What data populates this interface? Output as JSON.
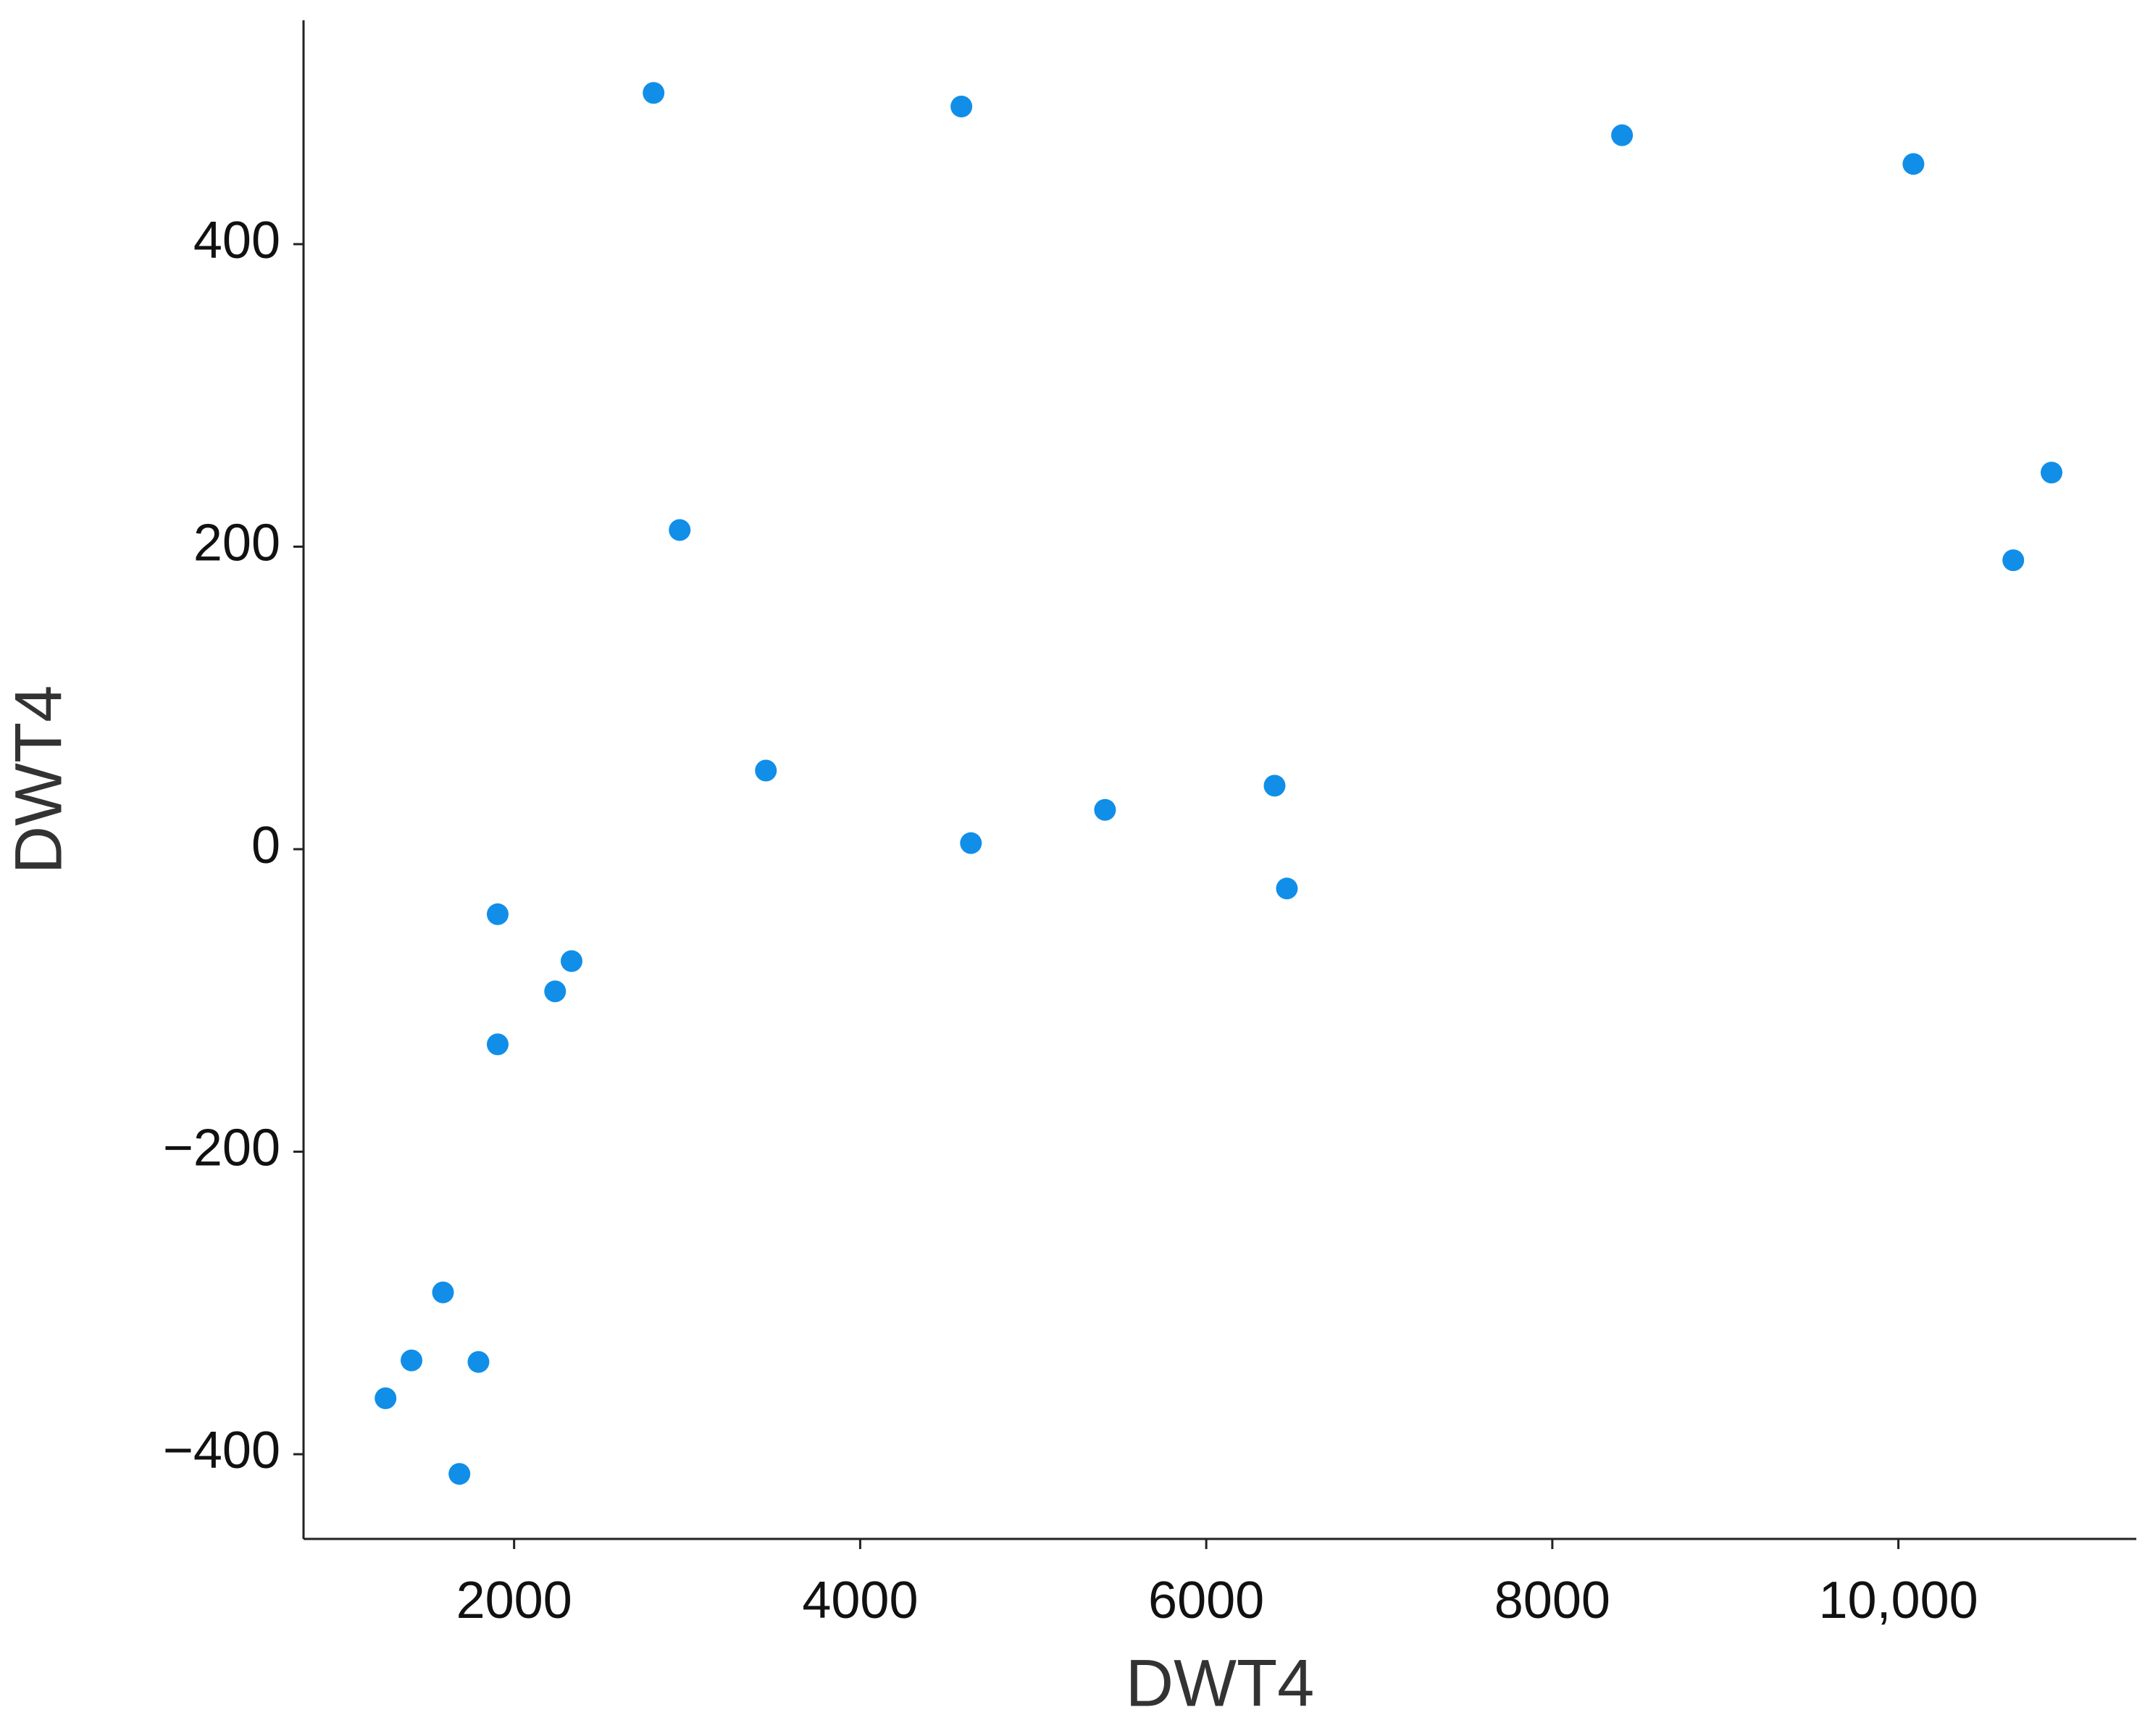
{
  "chart_data": {
    "type": "scatter",
    "xlabel": "DWT4",
    "ylabel": "DWT4",
    "color": "#118ee8",
    "x": [
      2806,
      4585,
      8403,
      10087,
      10885,
      10664,
      2957,
      3455,
      4640,
      5415,
      6395,
      6466,
      1905,
      2332,
      2237,
      1905,
      1589,
      1407,
      1794,
      1257,
      1684
    ],
    "values": [
      500,
      491,
      472,
      453,
      249,
      191,
      211,
      52,
      4,
      26,
      42,
      -26,
      -43,
      -74,
      -94,
      -129,
      -293,
      -338,
      -339,
      -363,
      -413
    ],
    "xlim": [
      783,
      11375
    ],
    "ylim": [
      -456,
      548
    ],
    "xticks": [
      2000,
      4000,
      6000,
      8000,
      {
        "value": 10000,
        "label": "10,000"
      }
    ],
    "yticks": [
      {
        "value": -400,
        "label": "−400"
      },
      {
        "value": -200,
        "label": "−200"
      },
      0,
      200,
      400
    ],
    "grid": false
  }
}
